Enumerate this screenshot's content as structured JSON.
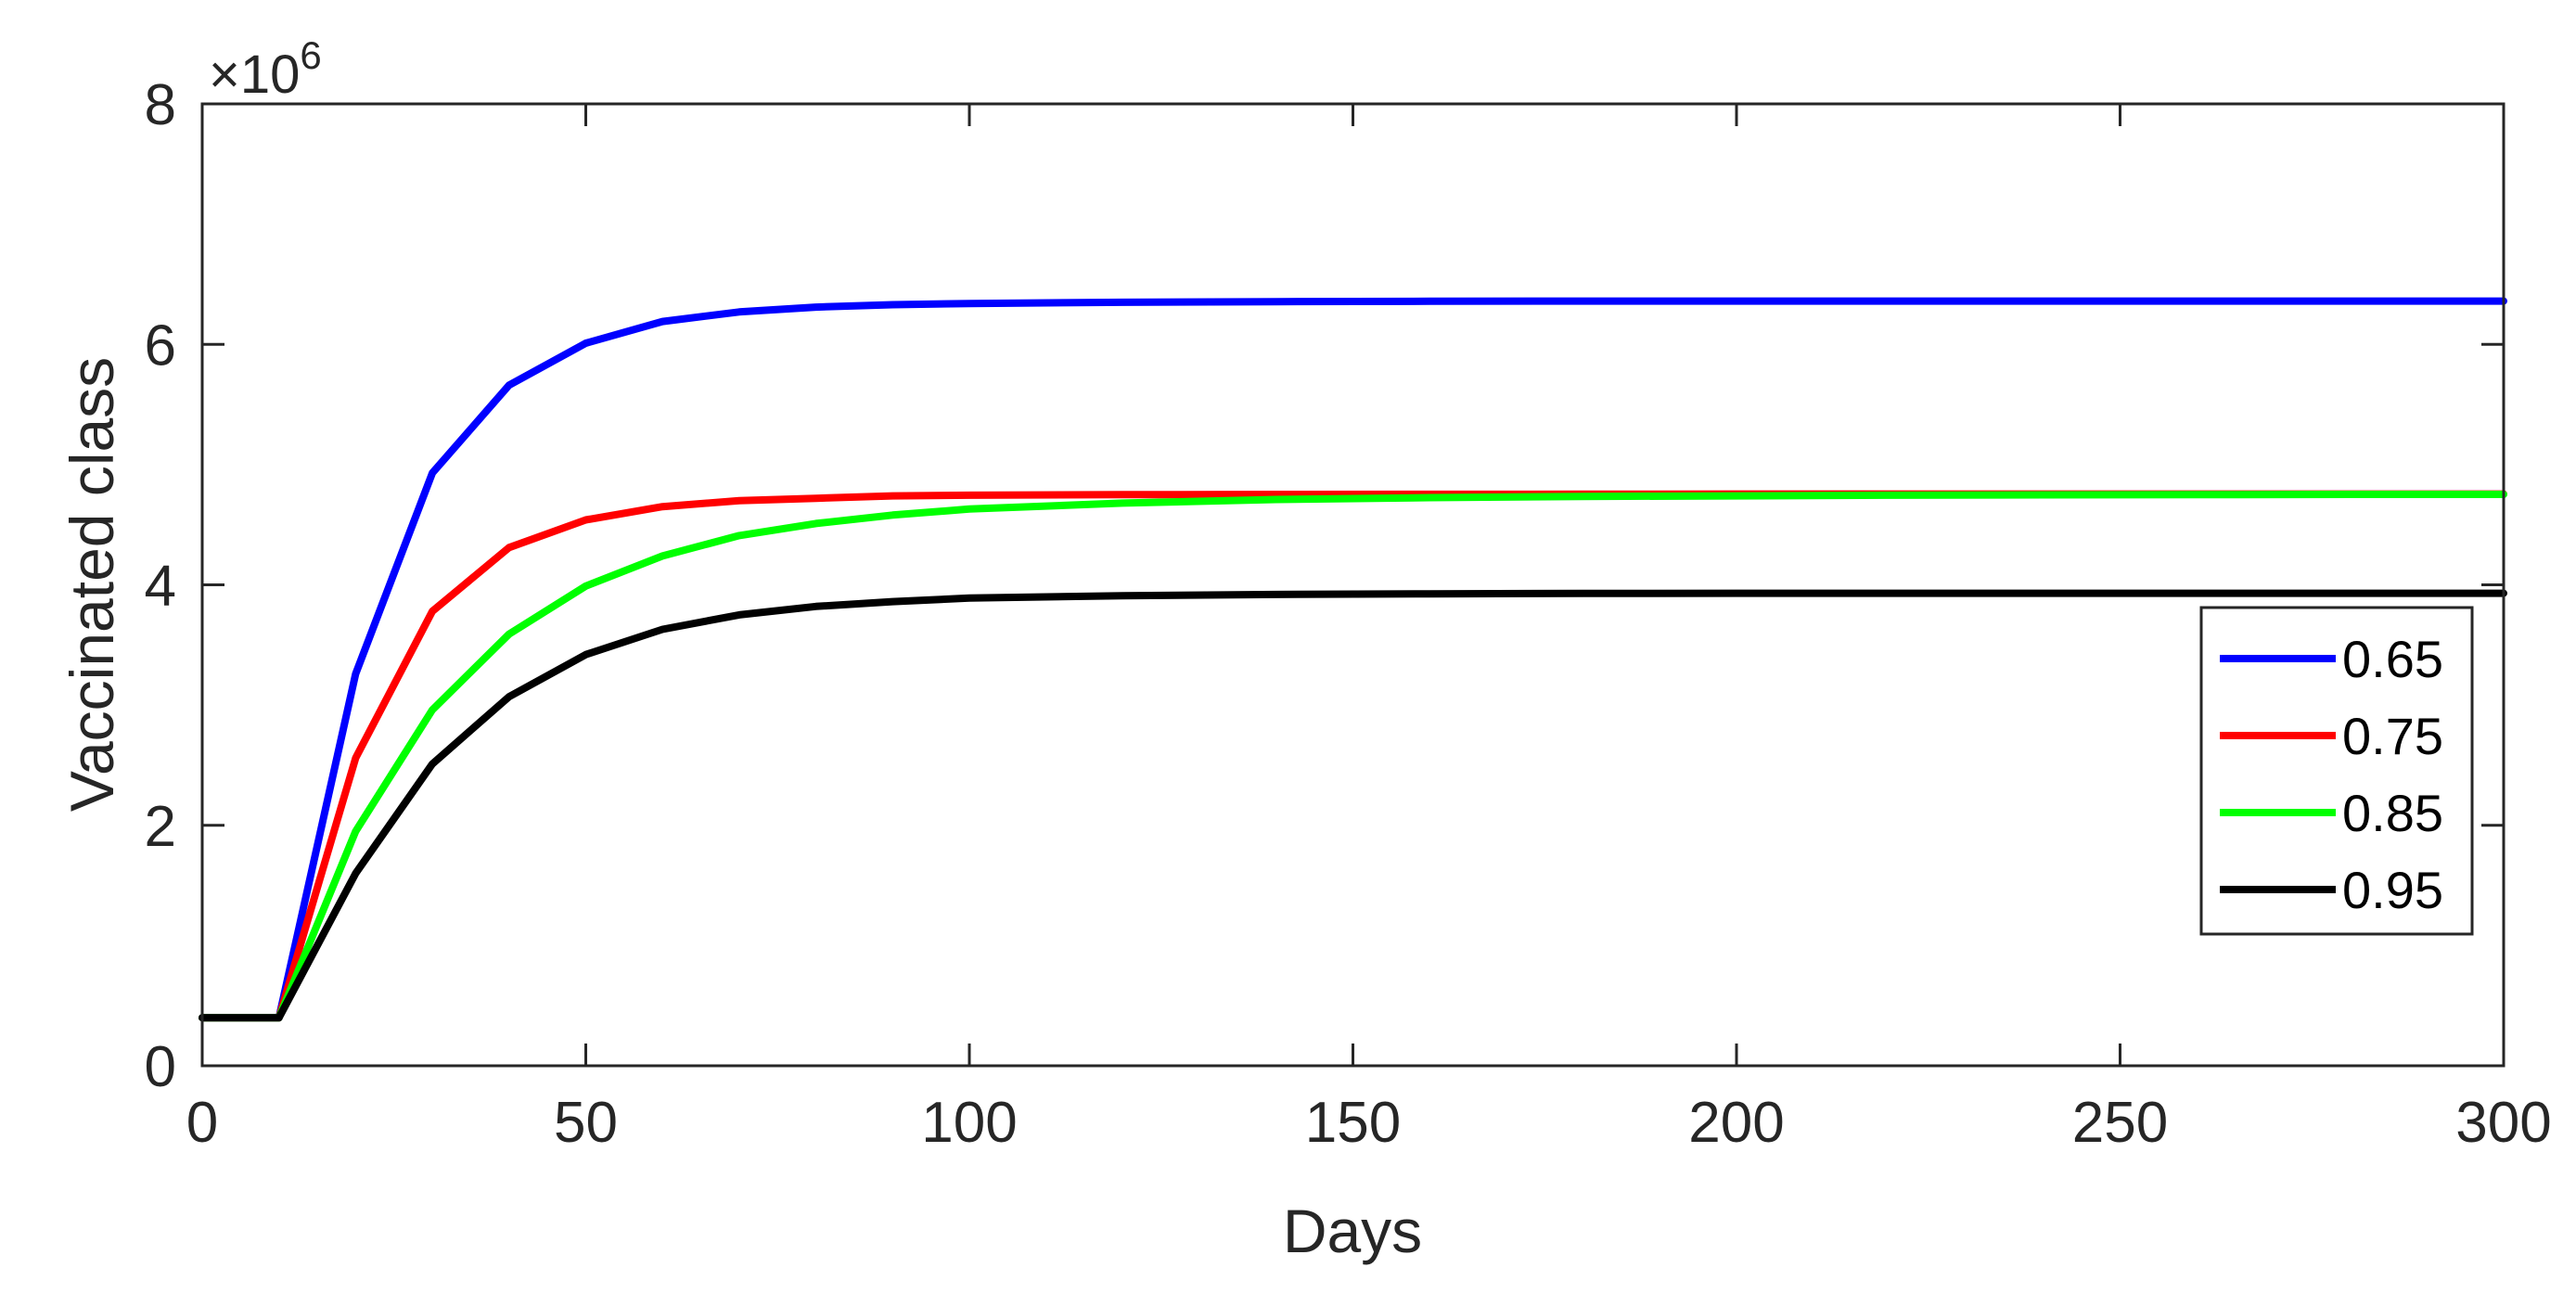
{
  "chart_data": {
    "type": "line",
    "xlabel": "Days",
    "ylabel": "Vaccinated class",
    "xlim": [
      0,
      300
    ],
    "ylim": [
      0,
      8000000
    ],
    "xticks": [
      0,
      50,
      100,
      150,
      200,
      250,
      300
    ],
    "yticks": [
      0,
      2,
      4,
      6,
      8
    ],
    "ytick_labels": [
      "0",
      "2",
      "4",
      "6",
      "8"
    ],
    "y_exponent": {
      "times": "×10",
      "power": "6"
    },
    "grid": false,
    "legend_position": "right",
    "x": [
      0,
      10,
      20,
      30,
      40,
      50,
      60,
      70,
      80,
      90,
      100,
      120,
      140,
      160,
      180,
      200,
      220,
      240,
      260,
      280,
      300
    ],
    "series": [
      {
        "name": "0.65",
        "color": "#0000ff",
        "values": [
          400000,
          400000,
          3260000,
          4930000,
          5660000,
          6010000,
          6190000,
          6270000,
          6310000,
          6330000,
          6340000,
          6350000,
          6355000,
          6358000,
          6360000,
          6360000,
          6360000,
          6360000,
          6360000,
          6360000,
          6360000
        ]
      },
      {
        "name": "0.75",
        "color": "#ff0000",
        "values": [
          400000,
          400000,
          2560000,
          3780000,
          4310000,
          4540000,
          4650000,
          4700000,
          4720000,
          4740000,
          4745000,
          4750000,
          4752000,
          4753000,
          4754000,
          4755000,
          4755000,
          4755000,
          4755000,
          4755000,
          4755000
        ]
      },
      {
        "name": "0.85",
        "color": "#00ff00",
        "values": [
          400000,
          400000,
          1950000,
          2960000,
          3590000,
          3990000,
          4240000,
          4410000,
          4510000,
          4580000,
          4630000,
          4680000,
          4710000,
          4725000,
          4735000,
          4740000,
          4745000,
          4748000,
          4750000,
          4752000,
          4752000
        ]
      },
      {
        "name": "0.95",
        "color": "#000000",
        "values": [
          400000,
          400000,
          1600000,
          2510000,
          3070000,
          3420000,
          3630000,
          3750000,
          3820000,
          3860000,
          3890000,
          3910000,
          3920000,
          3925000,
          3928000,
          3930000,
          3930000,
          3930000,
          3930000,
          3930000,
          3930000
        ]
      }
    ]
  }
}
